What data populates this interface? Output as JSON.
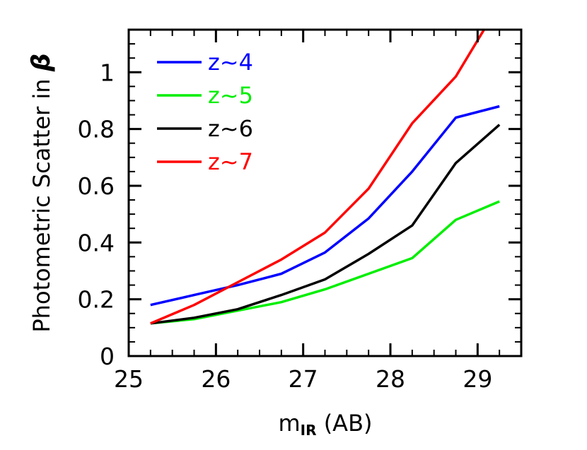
{
  "chart_data": {
    "type": "line",
    "title": "",
    "xlabel_main": "m",
    "xlabel_sub": "IR",
    "xlabel_rest": " (AB)",
    "ylabel_text": "Photometric Scatter in ",
    "ylabel_symbol": "β",
    "xlim": [
      25,
      29.5
    ],
    "ylim": [
      0,
      1.15
    ],
    "xticks": [
      25,
      26,
      27,
      28,
      29
    ],
    "xtick_labels": [
      "25",
      "26",
      "27",
      "28",
      "29"
    ],
    "yticks": [
      0,
      0.2,
      0.4,
      0.6,
      0.8,
      1.0
    ],
    "ytick_labels": [
      "0",
      "0.2",
      "0.4",
      "0.6",
      "0.8",
      "1"
    ],
    "x": [
      25.25,
      25.75,
      26.25,
      26.75,
      27.25,
      27.75,
      28.25,
      28.75,
      29.25
    ],
    "legend_placement": "top-left",
    "grid": false,
    "series": [
      {
        "name": "z~4",
        "color": "#0000ff",
        "values": [
          0.18,
          0.215,
          0.25,
          0.29,
          0.365,
          0.485,
          0.65,
          0.84,
          0.88
        ]
      },
      {
        "name": "z~5",
        "color": "#00ee00",
        "values": [
          0.115,
          0.13,
          0.16,
          0.19,
          0.235,
          0.29,
          0.345,
          0.48,
          0.545
        ]
      },
      {
        "name": "z~6",
        "color": "#000000",
        "values": [
          0.115,
          0.135,
          0.165,
          0.215,
          0.27,
          0.36,
          0.46,
          0.68,
          0.815
        ]
      },
      {
        "name": "z~7",
        "color": "#ff0000",
        "values": [
          0.115,
          0.18,
          0.26,
          0.34,
          0.435,
          0.59,
          0.82,
          0.985,
          1.24
        ]
      }
    ]
  }
}
